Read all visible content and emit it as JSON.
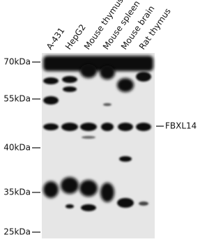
{
  "lanes": [
    "A-431",
    "HepG2",
    "Mouse thymus",
    "Mouse spleen",
    "Mouse brain",
    "Rat thymus"
  ],
  "markers": [
    "70kDa",
    "55kDa",
    "40kDa",
    "35kDa",
    "25kDa"
  ],
  "target": "FBXL14"
}
